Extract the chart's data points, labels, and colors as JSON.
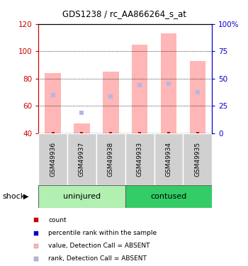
{
  "title": "GDS1238 / rc_AA866264_s_at",
  "samples": [
    "GSM49936",
    "GSM49937",
    "GSM49938",
    "GSM49933",
    "GSM49934",
    "GSM49935"
  ],
  "group_uninjured": {
    "label": "uninjured",
    "color": "#b2f0b2"
  },
  "group_contused": {
    "label": "contused",
    "color": "#33cc66"
  },
  "bar_bottom": 40,
  "bar_tops_absent": [
    84,
    47,
    85,
    105,
    113,
    93
  ],
  "rank_markers_absent": [
    68,
    55,
    67,
    75,
    76,
    70
  ],
  "left_ylim": [
    40,
    120
  ],
  "right_ylim": [
    0,
    100
  ],
  "left_yticks": [
    40,
    60,
    80,
    100,
    120
  ],
  "right_yticks": [
    0,
    25,
    50,
    75,
    100
  ],
  "right_yticklabels": [
    "0",
    "25",
    "50",
    "75",
    "100%"
  ],
  "bar_color_absent": "#ffb6b6",
  "rank_color_absent": "#b0b8e8",
  "count_color": "#cc0000",
  "rank_color": "#0000cc",
  "left_axis_color": "#cc0000",
  "right_axis_color": "#0000cc",
  "bar_width": 0.55,
  "marker_size_rank": 5,
  "marker_size_count": 3,
  "legend_items": [
    [
      "#cc0000",
      "count"
    ],
    [
      "#0000cc",
      "percentile rank within the sample"
    ],
    [
      "#ffb6b6",
      "value, Detection Call = ABSENT"
    ],
    [
      "#b0b8e8",
      "rank, Detection Call = ABSENT"
    ]
  ]
}
